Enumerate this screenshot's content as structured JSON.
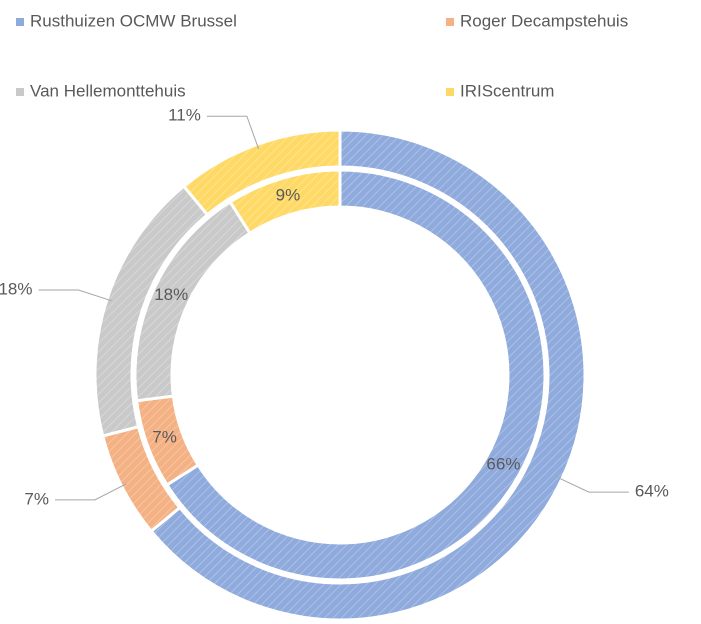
{
  "chart_data": {
    "type": "doughnut",
    "categories": [
      "Rusthuizen OCMW Brussel",
      "Roger Decampstehuis",
      "Van Hellemonttehuis",
      "IRIScentrum"
    ],
    "colors": [
      "#8faadc",
      "#f4b183",
      "#c9c9c9",
      "#ffd966"
    ],
    "series": [
      {
        "values": [
          64,
          7,
          18,
          11
        ],
        "value_labels": [
          "64%",
          "7%",
          "18%",
          "11%"
        ]
      },
      {
        "values": [
          66,
          7,
          18,
          9
        ],
        "value_labels": [
          "66%",
          "7%",
          "18%",
          "9%"
        ]
      }
    ],
    "legend": "top"
  }
}
